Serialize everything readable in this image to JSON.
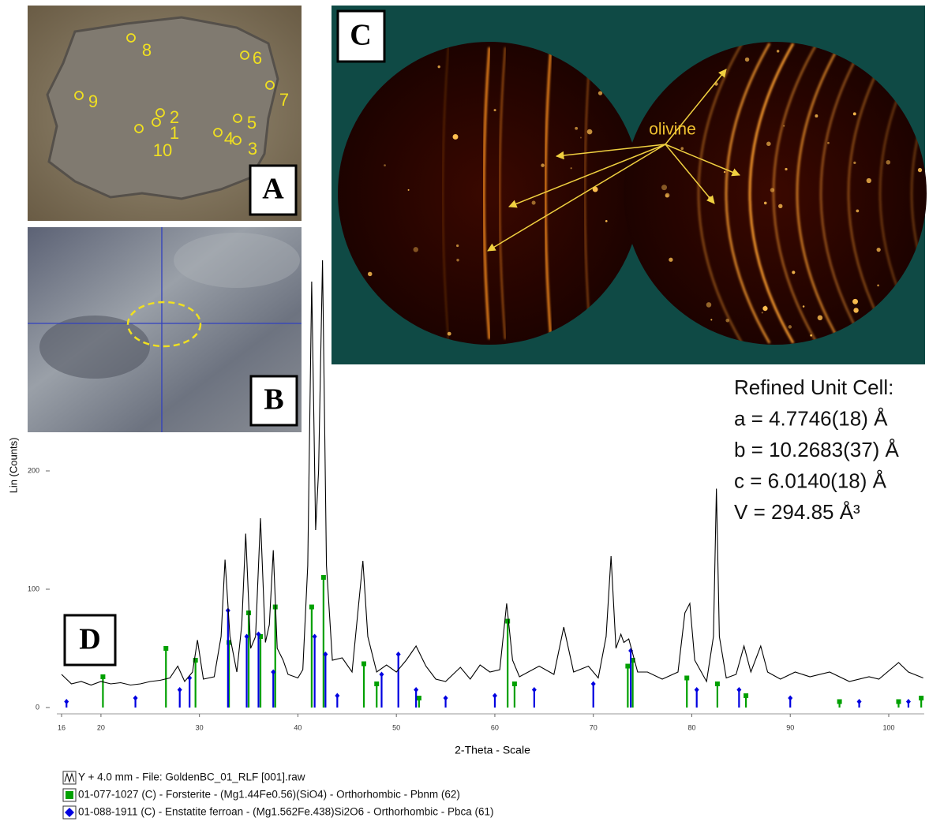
{
  "chart_data": {
    "type": "line",
    "ylabel": "Lin (Counts)",
    "xlabel": "2-Theta - Scale",
    "xlim": [
      16,
      103.6
    ],
    "ylim": [
      0,
      380
    ],
    "xticks": [
      16,
      20,
      30,
      40,
      50,
      60,
      70,
      80,
      90,
      100
    ],
    "yticks": [
      0,
      100,
      200
    ],
    "annotations": [
      "Refined Unit Cell:",
      "a = 4.7746(18) Å",
      "b = 10.2683(37) Å",
      "c = 6.0140(18) Å",
      "V = 294.85 Å³"
    ],
    "series": [
      {
        "name": "Y + 4.0 mm - File: GoldenBC_01_RLF [001].raw",
        "type": "line",
        "color": "#000000",
        "x": [
          16,
          17,
          18,
          19,
          20,
          21,
          22,
          23,
          24,
          25,
          26,
          27,
          27.8,
          28.5,
          29.3,
          29.8,
          30.4,
          31.5,
          32.2,
          32.6,
          33.1,
          33.8,
          34.3,
          34.7,
          35.2,
          35.7,
          36.2,
          36.7,
          37.1,
          37.5,
          37.9,
          38.5,
          39,
          40,
          40.5,
          41,
          41.4,
          41.8,
          42.1,
          42.5,
          42.9,
          43.5,
          44.5,
          45.5,
          46.2,
          46.6,
          47.1,
          48,
          49,
          50,
          51,
          52,
          53,
          54,
          55,
          56.5,
          57.5,
          58.5,
          59.5,
          60.5,
          61.2,
          61.8,
          62.5,
          64.5,
          66,
          67,
          68,
          69.5,
          70.5,
          71.3,
          71.8,
          72.3,
          72.8,
          73.1,
          73.6,
          74.5,
          75.5,
          77,
          78.6,
          79.3,
          79.8,
          80.3,
          81.5,
          82.2,
          82.5,
          82.8,
          83.5,
          84.5,
          85.3,
          86,
          87,
          87.7,
          89,
          90.5,
          92,
          94,
          96,
          98,
          99,
          101,
          102,
          103.5
        ],
        "values": [
          28,
          20,
          22,
          19,
          22,
          20,
          21,
          19,
          20,
          22,
          23,
          25,
          35,
          22,
          30,
          57,
          24,
          26,
          60,
          125,
          60,
          30,
          70,
          147,
          50,
          60,
          160,
          55,
          70,
          133,
          50,
          40,
          28,
          25,
          32,
          120,
          360,
          150,
          200,
          378,
          120,
          40,
          42,
          30,
          90,
          124,
          60,
          30,
          36,
          30,
          40,
          52,
          35,
          24,
          22,
          34,
          24,
          36,
          30,
          32,
          88,
          40,
          26,
          35,
          28,
          68,
          30,
          35,
          25,
          60,
          128,
          50,
          62,
          55,
          58,
          30,
          30,
          24,
          30,
          80,
          88,
          40,
          22,
          60,
          185,
          60,
          25,
          28,
          52,
          30,
          52,
          30,
          24,
          30,
          26,
          30,
          22,
          26,
          24,
          38,
          30,
          25
        ]
      },
      {
        "name": "01-077-1027 (C) - Forsterite - (Mg1.44Fe0.56)(SiO4) - Orthorhombic - Pbnm (62)",
        "type": "stick",
        "marker": "square",
        "color": "#00a000",
        "x": [
          20.2,
          26.6,
          29.6,
          33,
          35,
          36.2,
          37.7,
          41.4,
          42.6,
          46.7,
          48,
          52.3,
          61.3,
          62,
          73.5,
          74,
          79.5,
          82.6,
          85.5,
          95,
          101,
          103.3
        ],
        "values": [
          26,
          50,
          40,
          55,
          80,
          60,
          85,
          85,
          110,
          37,
          20,
          8,
          73,
          20,
          35,
          40,
          25,
          20,
          10,
          5,
          5,
          8
        ]
      },
      {
        "name": "01-088-1911 (C) - Enstatite ferroan - (Mg1.562Fe.438)Si2O6 - Orthorhombic - Pbca (61)",
        "type": "stick",
        "marker": "diamond",
        "color": "#0000e0",
        "x": [
          16.5,
          23.5,
          28,
          29,
          32.9,
          34.8,
          36,
          37.5,
          41.7,
          42.8,
          44,
          48.5,
          50.2,
          52,
          55,
          60,
          64,
          70,
          73.8,
          80.5,
          84.8,
          90,
          97,
          102
        ],
        "values": [
          5,
          8,
          15,
          25,
          82,
          60,
          62,
          30,
          60,
          45,
          10,
          28,
          45,
          15,
          8,
          10,
          15,
          20,
          48,
          15,
          15,
          8,
          5,
          5
        ]
      }
    ]
  },
  "panels": {
    "a": {
      "label": "A",
      "points": [
        "1",
        "2",
        "3",
        "4",
        "5",
        "6",
        "7",
        "8",
        "9",
        "10"
      ]
    },
    "b": {
      "label": "B"
    },
    "c": {
      "label": "C",
      "annotation": "olivine"
    },
    "d": {
      "label": "D"
    }
  }
}
